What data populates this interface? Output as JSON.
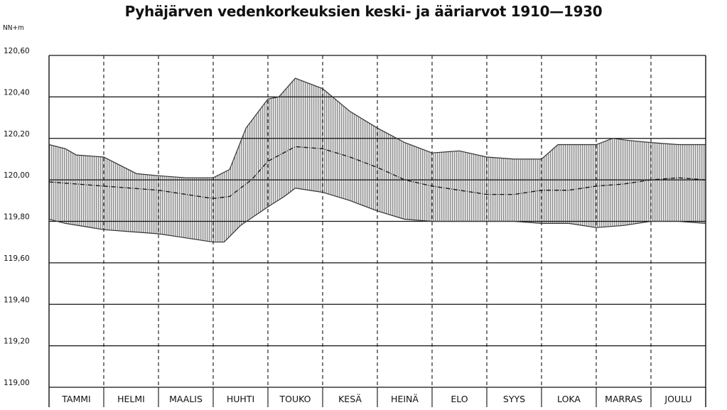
{
  "chart_data": {
    "type": "area",
    "title": "Pyhäjärven vedenkorkeuksien keski- ja ääriarvot 1910—1930",
    "ylabel": "NN+m",
    "ylim": [
      119.0,
      120.6
    ],
    "yticks": [
      120.6,
      120.4,
      120.2,
      120.0,
      119.8,
      119.6,
      119.4,
      119.2,
      119.0
    ],
    "ytick_labels": [
      "120,60",
      "120,40",
      "120,20",
      "120,00",
      "119,80",
      "119,60",
      "119,40",
      "119,20",
      "119,00"
    ],
    "months": [
      "TAMMI",
      "HELMI",
      "MAALIS",
      "HUHTI",
      "TOUKO",
      "KESÄ",
      "HEINÄ",
      "ELO",
      "SYYS",
      "LOKA",
      "MARRAS",
      "JOULU"
    ],
    "x_unit": "month (fraction of year, 0 = start of TAMMI, 12 = end of JOULU)",
    "series": [
      {
        "name": "max",
        "x": [
          0,
          0.3,
          0.5,
          1.0,
          1.3,
          1.6,
          2.0,
          2.5,
          3.0,
          3.3,
          3.6,
          4.0,
          4.2,
          4.5,
          5.0,
          5.5,
          6.0,
          6.5,
          7.0,
          7.5,
          8.0,
          8.5,
          9.0,
          9.3,
          9.6,
          10.0,
          10.3,
          10.6,
          11.0,
          11.5,
          12.0
        ],
        "values": [
          120.17,
          120.15,
          120.12,
          120.11,
          120.07,
          120.03,
          120.02,
          120.01,
          120.01,
          120.05,
          120.25,
          120.39,
          120.4,
          120.49,
          120.44,
          120.33,
          120.25,
          120.18,
          120.13,
          120.14,
          120.11,
          120.1,
          120.1,
          120.17,
          120.17,
          120.17,
          120.2,
          120.19,
          120.18,
          120.17,
          120.17
        ]
      },
      {
        "name": "mean",
        "x": [
          0,
          1.0,
          2.0,
          3.0,
          3.3,
          3.7,
          4.0,
          4.5,
          5.0,
          5.5,
          6.0,
          6.5,
          7.0,
          7.5,
          8.0,
          8.5,
          9.0,
          9.5,
          10.0,
          10.5,
          11.0,
          11.5,
          12.0
        ],
        "values": [
          119.99,
          119.97,
          119.95,
          119.91,
          119.92,
          120.0,
          120.09,
          120.16,
          120.15,
          120.11,
          120.06,
          120.0,
          119.97,
          119.95,
          119.93,
          119.93,
          119.95,
          119.95,
          119.97,
          119.98,
          120.0,
          120.01,
          120.0
        ]
      },
      {
        "name": "min",
        "x": [
          0,
          0.3,
          1.0,
          1.5,
          2.0,
          2.5,
          3.0,
          3.2,
          3.5,
          4.0,
          4.3,
          4.5,
          5.0,
          5.5,
          6.0,
          6.5,
          7.0,
          7.5,
          8.0,
          8.5,
          9.0,
          9.5,
          10.0,
          10.5,
          11.0,
          11.5,
          12.0
        ],
        "values": [
          119.81,
          119.79,
          119.76,
          119.75,
          119.74,
          119.72,
          119.7,
          119.7,
          119.78,
          119.87,
          119.92,
          119.96,
          119.94,
          119.9,
          119.85,
          119.81,
          119.8,
          119.8,
          119.8,
          119.8,
          119.79,
          119.79,
          119.77,
          119.78,
          119.8,
          119.8,
          119.79
        ]
      }
    ],
    "grid": true,
    "legend": "none"
  }
}
